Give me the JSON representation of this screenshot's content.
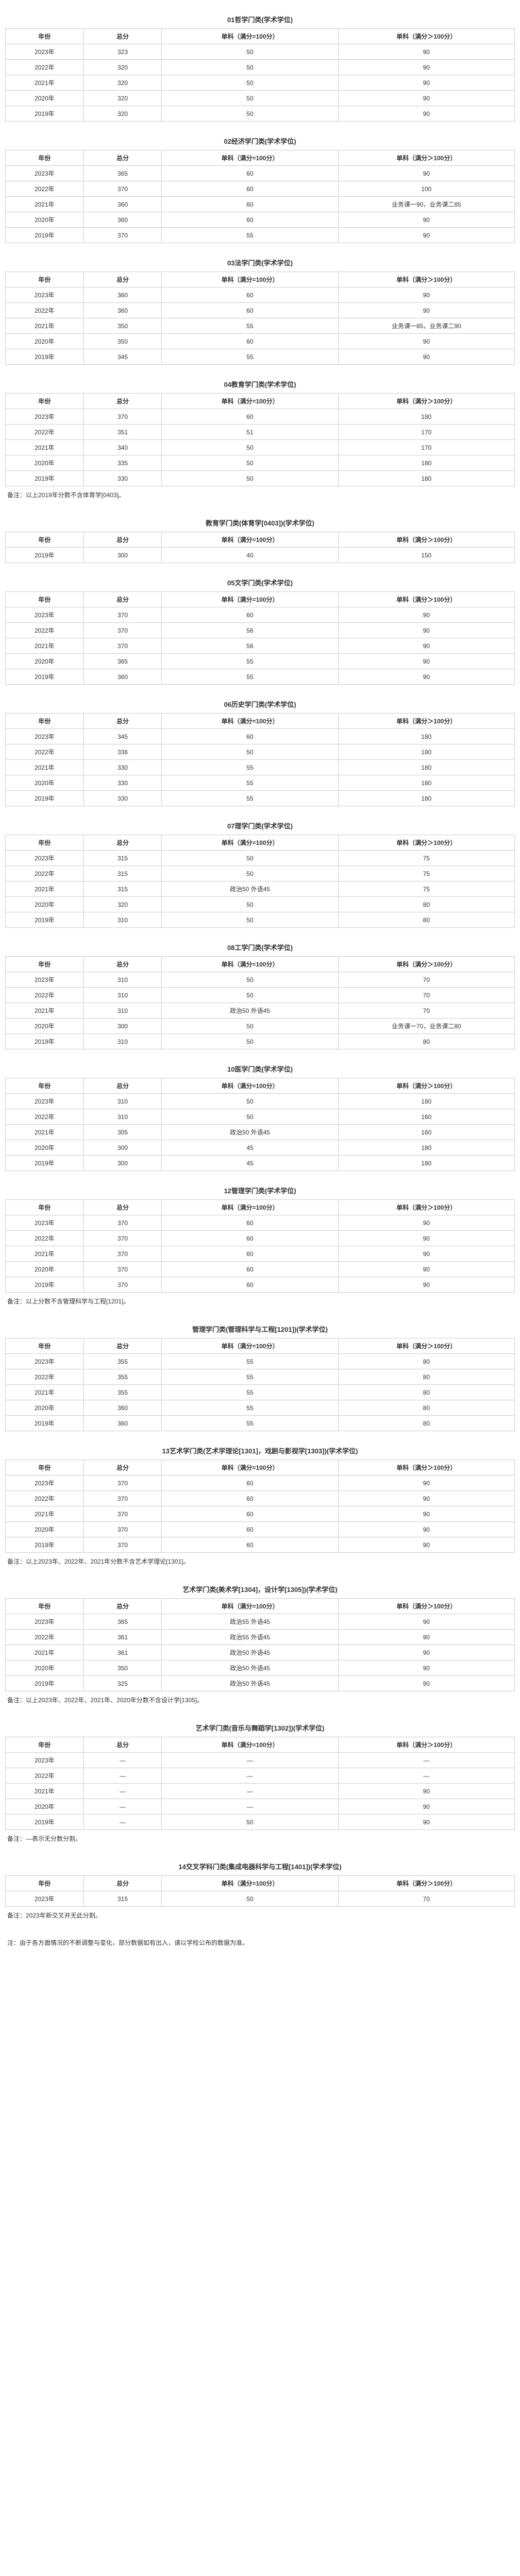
{
  "headers": {
    "year": "年份",
    "total": "总分",
    "sub100": "单科（满分=100分）",
    "subOver100": "单科（满分＞100分）"
  },
  "sections": [
    {
      "title": "01哲学门类(学术学位)",
      "rows": [
        {
          "y": "2023年",
          "t": "323",
          "s1": "50",
          "s2": "90"
        },
        {
          "y": "2022年",
          "t": "320",
          "s1": "50",
          "s2": "90"
        },
        {
          "y": "2021年",
          "t": "320",
          "s1": "50",
          "s2": "90"
        },
        {
          "y": "2020年",
          "t": "320",
          "s1": "50",
          "s2": "90"
        },
        {
          "y": "2019年",
          "t": "320",
          "s1": "50",
          "s2": "90"
        }
      ]
    },
    {
      "title": "02经济学门类(学术学位)",
      "rows": [
        {
          "y": "2023年",
          "t": "365",
          "s1": "60",
          "s2": "90"
        },
        {
          "y": "2022年",
          "t": "370",
          "s1": "60",
          "s2": "100"
        },
        {
          "y": "2021年",
          "t": "360",
          "s1": "60",
          "s2": "业务课一90，业务课二85"
        },
        {
          "y": "2020年",
          "t": "360",
          "s1": "60",
          "s2": "90"
        },
        {
          "y": "2019年",
          "t": "370",
          "s1": "55",
          "s2": "90"
        }
      ]
    },
    {
      "title": "03法学门类(学术学位)",
      "rows": [
        {
          "y": "2023年",
          "t": "360",
          "s1": "60",
          "s2": "90"
        },
        {
          "y": "2022年",
          "t": "360",
          "s1": "60",
          "s2": "90"
        },
        {
          "y": "2021年",
          "t": "350",
          "s1": "55",
          "s2": "业务课一85，业务课二90"
        },
        {
          "y": "2020年",
          "t": "350",
          "s1": "60",
          "s2": "90"
        },
        {
          "y": "2019年",
          "t": "345",
          "s1": "55",
          "s2": "90"
        }
      ]
    },
    {
      "title": "04教育学门类(学术学位)",
      "rows": [
        {
          "y": "2023年",
          "t": "370",
          "s1": "60",
          "s2": "180"
        },
        {
          "y": "2022年",
          "t": "351",
          "s1": "51",
          "s2": "170"
        },
        {
          "y": "2021年",
          "t": "340",
          "s1": "50",
          "s2": "170"
        },
        {
          "y": "2020年",
          "t": "335",
          "s1": "50",
          "s2": "180"
        },
        {
          "y": "2019年",
          "t": "330",
          "s1": "50",
          "s2": "180"
        }
      ],
      "note": "备注：以上2019年分数不含体育学[0403]。"
    },
    {
      "title": "教育学门类(体育学[0403])(学术学位)",
      "rows": [
        {
          "y": "2019年",
          "t": "300",
          "s1": "40",
          "s2": "150"
        }
      ]
    },
    {
      "title": "05文学门类(学术学位)",
      "rows": [
        {
          "y": "2023年",
          "t": "370",
          "s1": "60",
          "s2": "90"
        },
        {
          "y": "2022年",
          "t": "370",
          "s1": "56",
          "s2": "90"
        },
        {
          "y": "2021年",
          "t": "370",
          "s1": "56",
          "s2": "90"
        },
        {
          "y": "2020年",
          "t": "365",
          "s1": "55",
          "s2": "90"
        },
        {
          "y": "2019年",
          "t": "360",
          "s1": "55",
          "s2": "90"
        }
      ]
    },
    {
      "title": "06历史学门类(学术学位)",
      "rows": [
        {
          "y": "2023年",
          "t": "345",
          "s1": "60",
          "s2": "180"
        },
        {
          "y": "2022年",
          "t": "336",
          "s1": "50",
          "s2": "180"
        },
        {
          "y": "2021年",
          "t": "330",
          "s1": "55",
          "s2": "180"
        },
        {
          "y": "2020年",
          "t": "330",
          "s1": "55",
          "s2": "180"
        },
        {
          "y": "2019年",
          "t": "330",
          "s1": "55",
          "s2": "180"
        }
      ]
    },
    {
      "title": "07理学门类(学术学位)",
      "rows": [
        {
          "y": "2023年",
          "t": "315",
          "s1": "50",
          "s2": "75"
        },
        {
          "y": "2022年",
          "t": "315",
          "s1": "50",
          "s2": "75"
        },
        {
          "y": "2021年",
          "t": "315",
          "s1": "政治50 外语45",
          "s2": "75"
        },
        {
          "y": "2020年",
          "t": "320",
          "s1": "50",
          "s2": "80"
        },
        {
          "y": "2019年",
          "t": "310",
          "s1": "50",
          "s2": "80"
        }
      ]
    },
    {
      "title": "08工学门类(学术学位)",
      "rows": [
        {
          "y": "2023年",
          "t": "310",
          "s1": "50",
          "s2": "70"
        },
        {
          "y": "2022年",
          "t": "310",
          "s1": "50",
          "s2": "70"
        },
        {
          "y": "2021年",
          "t": "310",
          "s1": "政治50 外语45",
          "s2": "70"
        },
        {
          "y": "2020年",
          "t": "300",
          "s1": "50",
          "s2": "业务课一70，业务课二80"
        },
        {
          "y": "2019年",
          "t": "310",
          "s1": "50",
          "s2": "80"
        }
      ]
    },
    {
      "title": "10医学门类(学术学位)",
      "rows": [
        {
          "y": "2023年",
          "t": "310",
          "s1": "50",
          "s2": "180"
        },
        {
          "y": "2022年",
          "t": "310",
          "s1": "50",
          "s2": "160"
        },
        {
          "y": "2021年",
          "t": "305",
          "s1": "政治50 外语45",
          "s2": "160"
        },
        {
          "y": "2020年",
          "t": "300",
          "s1": "45",
          "s2": "180"
        },
        {
          "y": "2019年",
          "t": "300",
          "s1": "45",
          "s2": "180"
        }
      ]
    },
    {
      "title": "12管理学门类(学术学位)",
      "rows": [
        {
          "y": "2023年",
          "t": "370",
          "s1": "60",
          "s2": "90"
        },
        {
          "y": "2022年",
          "t": "370",
          "s1": "60",
          "s2": "90"
        },
        {
          "y": "2021年",
          "t": "370",
          "s1": "60",
          "s2": "90"
        },
        {
          "y": "2020年",
          "t": "370",
          "s1": "60",
          "s2": "90"
        },
        {
          "y": "2019年",
          "t": "370",
          "s1": "60",
          "s2": "90"
        }
      ],
      "note": "备注：以上分数不含管理科学与工程[1201]。"
    },
    {
      "title": "管理学门类(管理科学与工程[1201])(学术学位)",
      "rows": [
        {
          "y": "2023年",
          "t": "355",
          "s1": "55",
          "s2": "80"
        },
        {
          "y": "2022年",
          "t": "355",
          "s1": "55",
          "s2": "80"
        },
        {
          "y": "2021年",
          "t": "355",
          "s1": "55",
          "s2": "80"
        },
        {
          "y": "2020年",
          "t": "360",
          "s1": "55",
          "s2": "80"
        },
        {
          "y": "2019年",
          "t": "360",
          "s1": "55",
          "s2": "80"
        }
      ]
    },
    {
      "title": "13艺术学门类(艺术学理论[1301]，戏剧与影视学[1303])(学术学位)",
      "rows": [
        {
          "y": "2023年",
          "t": "370",
          "s1": "60",
          "s2": "90"
        },
        {
          "y": "2022年",
          "t": "370",
          "s1": "60",
          "s2": "90"
        },
        {
          "y": "2021年",
          "t": "370",
          "s1": "60",
          "s2": "90"
        },
        {
          "y": "2020年",
          "t": "370",
          "s1": "60",
          "s2": "90"
        },
        {
          "y": "2019年",
          "t": "370",
          "s1": "60",
          "s2": "90"
        }
      ],
      "note": "备注：以上2023年、2022年、2021年分数不含艺术学理论[1301]。"
    },
    {
      "title": "艺术学门类(美术学[1304]，设计学[1305])(学术学位)",
      "rows": [
        {
          "y": "2023年",
          "t": "365",
          "s1": "政治55 外语45",
          "s2": "90"
        },
        {
          "y": "2022年",
          "t": "361",
          "s1": "政治55 外语45",
          "s2": "90"
        },
        {
          "y": "2021年",
          "t": "361",
          "s1": "政治50 外语45",
          "s2": "90"
        },
        {
          "y": "2020年",
          "t": "350",
          "s1": "政治50 外语45",
          "s2": "90"
        },
        {
          "y": "2019年",
          "t": "325",
          "s1": "政治50 外语45",
          "s2": "90"
        }
      ],
      "note": "备注：以上2023年、2022年、2021年、2020年分数不含设计学[1305]。"
    },
    {
      "title": "艺术学门类(音乐与舞蹈学[1302])(学术学位)",
      "rows": [
        {
          "y": "2023年",
          "t": "—",
          "s1": "—",
          "s2": "—"
        },
        {
          "y": "2022年",
          "t": "—",
          "s1": "—",
          "s2": "—"
        },
        {
          "y": "2021年",
          "t": "—",
          "s1": "—",
          "s2": "90"
        },
        {
          "y": "2020年",
          "t": "—",
          "s1": "—",
          "s2": "90"
        },
        {
          "y": "2019年",
          "t": "—",
          "s1": "50",
          "s2": "90"
        }
      ],
      "note": "备注：—表示无分数分割。"
    },
    {
      "title": "14交叉学科门类(集成电器科学与工程[1401])(学术学位)",
      "rows": [
        {
          "y": "2023年",
          "t": "315",
          "s1": "50",
          "s2": "70"
        }
      ],
      "note": "备注：2023年新交叉并无此分割。"
    }
  ],
  "footer_note": "注：由于各方面情况的不断调整与变化，部分数据如有出入，请以学校公布的数据为准。"
}
